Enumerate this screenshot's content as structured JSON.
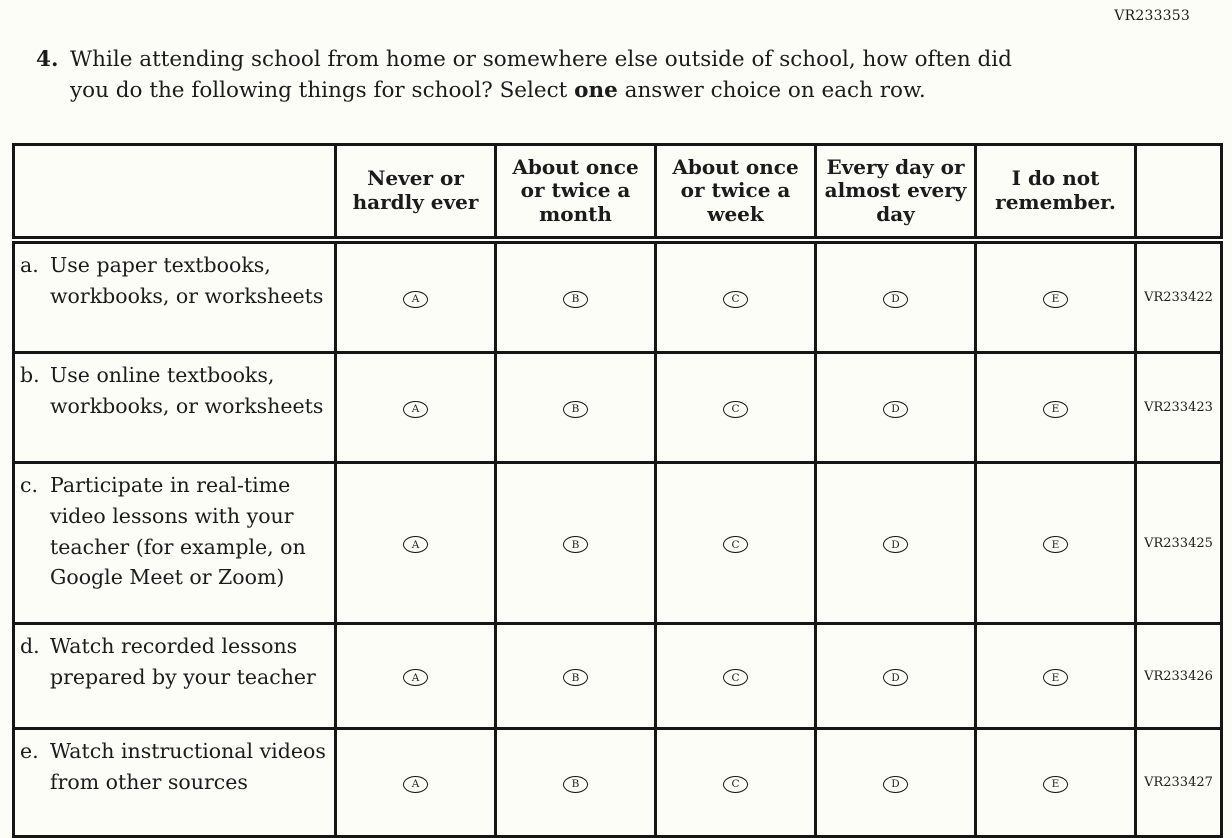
{
  "page": {
    "top_right_code": "VR233353"
  },
  "question": {
    "number": "4.",
    "line1": "While attending school from home or somewhere else outside of school, how often did",
    "line2_before": "you do the following things for school? Select ",
    "bold_word": "one",
    "line2_after": " answer choice on each row."
  },
  "table": {
    "column_headers": [
      "Never or hardly ever",
      "About once or twice a month",
      "About once or twice a week",
      "Every day or almost every day",
      "I do not remember."
    ],
    "options": [
      "A",
      "B",
      "C",
      "D",
      "E"
    ],
    "rows": [
      {
        "letter": "a.",
        "label": "Use paper textbooks, workbooks, or worksheets",
        "code": "VR233422"
      },
      {
        "letter": "b.",
        "label": "Use online textbooks, workbooks, or worksheets",
        "code": "VR233423"
      },
      {
        "letter": "c.",
        "label": "Participate in real-time video lessons with your teacher (for example, on Google Meet or Zoom)",
        "code": "VR233425"
      },
      {
        "letter": "d.",
        "label": "Watch recorded lessons prepared by your teacher",
        "code": "VR233426"
      },
      {
        "letter": "e.",
        "label": "Watch instructional videos from other sources",
        "code": "VR233427"
      }
    ]
  },
  "colors": {
    "text": "#1b1b1b",
    "border": "#161616",
    "background": "#fdfdf8"
  }
}
